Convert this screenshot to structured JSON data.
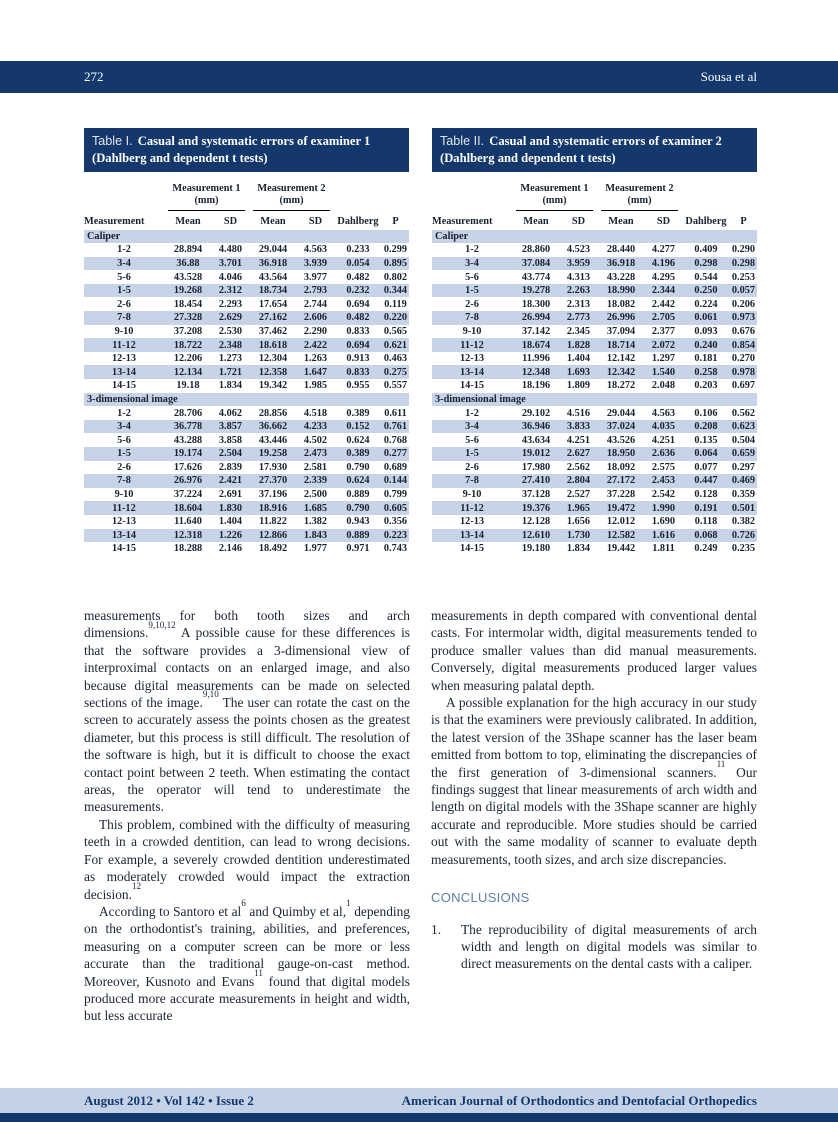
{
  "header": {
    "page_number": "272",
    "running_head": "Sousa et al"
  },
  "footer": {
    "issue_info": "August 2012 • Vol 142 • Issue 2",
    "journal_name": "American Journal of Orthodontics and Dentofacial Orthopedics"
  },
  "colors": {
    "navy": "#14386c",
    "row_stripe": "#c7d4e7",
    "footer_band": "#c3d2e7",
    "heading_blue": "#5d80a7"
  },
  "tables": [
    {
      "title_label": "Table I.",
      "title_text": "Casual and systematic errors of examiner 1 (Dahlberg and dependent t tests)",
      "group_headers": [
        "Measurement 1 (mm)",
        "Measurement 2 (mm)"
      ],
      "columns": [
        "Measurement",
        "Mean",
        "SD",
        "Mean",
        "SD",
        "Dahlberg",
        "P"
      ],
      "sections": [
        {
          "label": "Caliper",
          "rows": [
            [
              "1-2",
              "28.894",
              "4.480",
              "29.044",
              "4.563",
              "0.233",
              "0.299"
            ],
            [
              "3-4",
              "36.88",
              "3.701",
              "36.918",
              "3.939",
              "0.054",
              "0.895"
            ],
            [
              "5-6",
              "43.528",
              "4.046",
              "43.564",
              "3.977",
              "0.482",
              "0.802"
            ],
            [
              "1-5",
              "19.268",
              "2.312",
              "18.734",
              "2.793",
              "0.232",
              "0.344"
            ],
            [
              "2-6",
              "18.454",
              "2.293",
              "17.654",
              "2.744",
              "0.694",
              "0.119"
            ],
            [
              "7-8",
              "27.328",
              "2.629",
              "27.162",
              "2.606",
              "0.482",
              "0.220"
            ],
            [
              "9-10",
              "37.208",
              "2.530",
              "37.462",
              "2.290",
              "0.833",
              "0.565"
            ],
            [
              "11-12",
              "18.722",
              "2.348",
              "18.618",
              "2.422",
              "0.694",
              "0.621"
            ],
            [
              "12-13",
              "12.206",
              "1.273",
              "12.304",
              "1.263",
              "0.913",
              "0.463"
            ],
            [
              "13-14",
              "12.134",
              "1.721",
              "12.358",
              "1.647",
              "0.833",
              "0.275"
            ],
            [
              "14-15",
              "19.18",
              "1.834",
              "19.342",
              "1.985",
              "0.955",
              "0.557"
            ]
          ]
        },
        {
          "label": "3-dimensional image",
          "rows": [
            [
              "1-2",
              "28.706",
              "4.062",
              "28.856",
              "4.518",
              "0.389",
              "0.611"
            ],
            [
              "3-4",
              "36.778",
              "3.857",
              "36.662",
              "4.233",
              "0.152",
              "0.761"
            ],
            [
              "5-6",
              "43.288",
              "3.858",
              "43.446",
              "4.502",
              "0.624",
              "0.768"
            ],
            [
              "1-5",
              "19.174",
              "2.504",
              "19.258",
              "2.473",
              "0.389",
              "0.277"
            ],
            [
              "2-6",
              "17.626",
              "2.839",
              "17.930",
              "2.581",
              "0.790",
              "0.689"
            ],
            [
              "7-8",
              "26.976",
              "2.421",
              "27.370",
              "2.339",
              "0.624",
              "0.144"
            ],
            [
              "9-10",
              "37.224",
              "2.691",
              "37.196",
              "2.500",
              "0.889",
              "0.799"
            ],
            [
              "11-12",
              "18.604",
              "1.830",
              "18.916",
              "1.685",
              "0.790",
              "0.605"
            ],
            [
              "12-13",
              "11.640",
              "1.404",
              "11.822",
              "1.382",
              "0.943",
              "0.356"
            ],
            [
              "13-14",
              "12.318",
              "1.226",
              "12.866",
              "1.843",
              "0.889",
              "0.223"
            ],
            [
              "14-15",
              "18.288",
              "2.146",
              "18.492",
              "1.977",
              "0.971",
              "0.743"
            ]
          ]
        }
      ]
    },
    {
      "title_label": "Table II.",
      "title_text": "Casual and systematic errors of examiner 2 (Dahlberg and dependent t tests)",
      "group_headers": [
        "Measurement 1 (mm)",
        "Measurement 2 (mm)"
      ],
      "columns": [
        "Measurement",
        "Mean",
        "SD",
        "Mean",
        "SD",
        "Dahlberg",
        "P"
      ],
      "sections": [
        {
          "label": "Caliper",
          "rows": [
            [
              "1-2",
              "28.860",
              "4.523",
              "28.440",
              "4.277",
              "0.409",
              "0.290"
            ],
            [
              "3-4",
              "37.084",
              "3.959",
              "36.918",
              "4.196",
              "0.298",
              "0.298"
            ],
            [
              "5-6",
              "43.774",
              "4.313",
              "43.228",
              "4.295",
              "0.544",
              "0.253"
            ],
            [
              "1-5",
              "19.278",
              "2.263",
              "18.990",
              "2.344",
              "0.250",
              "0.057"
            ],
            [
              "2-6",
              "18.300",
              "2.313",
              "18.082",
              "2.442",
              "0.224",
              "0.206"
            ],
            [
              "7-8",
              "26.994",
              "2.773",
              "26.996",
              "2.705",
              "0.061",
              "0.973"
            ],
            [
              "9-10",
              "37.142",
              "2.345",
              "37.094",
              "2.377",
              "0.093",
              "0.676"
            ],
            [
              "11-12",
              "18.674",
              "1.828",
              "18.714",
              "2.072",
              "0.240",
              "0.854"
            ],
            [
              "12-13",
              "11.996",
              "1.404",
              "12.142",
              "1.297",
              "0.181",
              "0.270"
            ],
            [
              "13-14",
              "12.348",
              "1.693",
              "12.342",
              "1.540",
              "0.258",
              "0.978"
            ],
            [
              "14-15",
              "18.196",
              "1.809",
              "18.272",
              "2.048",
              "0.203",
              "0.697"
            ]
          ]
        },
        {
          "label": "3-dimensional image",
          "rows": [
            [
              "1-2",
              "29.102",
              "4.516",
              "29.044",
              "4.563",
              "0.106",
              "0.562"
            ],
            [
              "3-4",
              "36.946",
              "3.833",
              "37.024",
              "4.035",
              "0.208",
              "0.623"
            ],
            [
              "5-6",
              "43.634",
              "4.251",
              "43.526",
              "4.251",
              "0.135",
              "0.504"
            ],
            [
              "1-5",
              "19.012",
              "2.627",
              "18.950",
              "2.636",
              "0.064",
              "0.659"
            ],
            [
              "2-6",
              "17.980",
              "2.562",
              "18.092",
              "2.575",
              "0.077",
              "0.297"
            ],
            [
              "7-8",
              "27.410",
              "2.804",
              "27.172",
              "2.453",
              "0.447",
              "0.469"
            ],
            [
              "9-10",
              "37.128",
              "2.527",
              "37.228",
              "2.542",
              "0.128",
              "0.359"
            ],
            [
              "11-12",
              "19.376",
              "1.965",
              "19.472",
              "1.990",
              "0.191",
              "0.501"
            ],
            [
              "12-13",
              "12.128",
              "1.656",
              "12.012",
              "1.690",
              "0.118",
              "0.382"
            ],
            [
              "13-14",
              "12.610",
              "1.730",
              "12.582",
              "1.616",
              "0.068",
              "0.726"
            ],
            [
              "14-15",
              "19.180",
              "1.834",
              "19.442",
              "1.811",
              "0.249",
              "0.235"
            ]
          ]
        }
      ]
    }
  ],
  "article": {
    "left_column_paragraphs": [
      {
        "indent": false,
        "parts": [
          {
            "t": "measurements for both tooth sizes and arch dimensions."
          },
          {
            "s": "9,10,12"
          },
          {
            "t": " A possible cause for these differences is that the software provides a 3-dimensional view of interproximal contacts on an enlarged image, and also because digital measurements can be made on selected sections of the image."
          },
          {
            "s": "9,10"
          },
          {
            "t": " The user can rotate the cast on the screen to accurately assess the points chosen as the greatest diameter, but this process is still difficult. The resolution of the software is high, but it is difficult to choose the exact contact point between 2 teeth. When estimating the contact areas, the operator will tend to underestimate the measurements."
          }
        ]
      },
      {
        "indent": true,
        "parts": [
          {
            "t": "This problem, combined with the difficulty of measuring teeth in a crowded dentition, can lead to wrong decisions. For example, a severely crowded dentition underestimated as moderately crowded would impact the extraction decision."
          },
          {
            "s": "12"
          }
        ]
      },
      {
        "indent": true,
        "parts": [
          {
            "t": "According to Santoro et al"
          },
          {
            "s": "6"
          },
          {
            "t": " and Quimby et al,"
          },
          {
            "s": "1"
          },
          {
            "t": " depending on the orthodontist's training, abilities, and preferences, measuring on a computer screen can be more or less accurate than the traditional gauge-on-cast method. Moreover, Kusnoto and Evans"
          },
          {
            "s": "11"
          },
          {
            "t": " found that digital models produced more accurate measurements in height and width, but less accurate"
          }
        ]
      }
    ],
    "right_column_paragraphs": [
      {
        "indent": false,
        "parts": [
          {
            "t": "measurements in depth compared with conventional dental casts. For intermolar width, digital measurements tended to produce smaller values than did manual measurements. Conversely, digital measurements produced larger values when measuring palatal depth."
          }
        ]
      },
      {
        "indent": true,
        "parts": [
          {
            "t": "A possible explanation for the high accuracy in our study is that the examiners were previously calibrated. In addition, the latest version of the 3Shape scanner has the laser beam emitted from bottom to top, eliminating the discrepancies of the first generation of 3-dimensional scanners."
          },
          {
            "s": "11"
          },
          {
            "t": " Our findings suggest that linear measurements of arch width and length on digital models with the 3Shape scanner are highly accurate and reproducible. More studies should be carried out with the same modality of scanner to evaluate depth measurements, tooth sizes, and arch size discrepancies."
          }
        ]
      }
    ],
    "conclusions": {
      "heading": "CONCLUSIONS",
      "items": [
        {
          "number": "1.",
          "text": "The reproducibility of digital measurements of arch width and length on digital models was similar to direct measurements on the dental casts with a caliper."
        }
      ]
    }
  }
}
